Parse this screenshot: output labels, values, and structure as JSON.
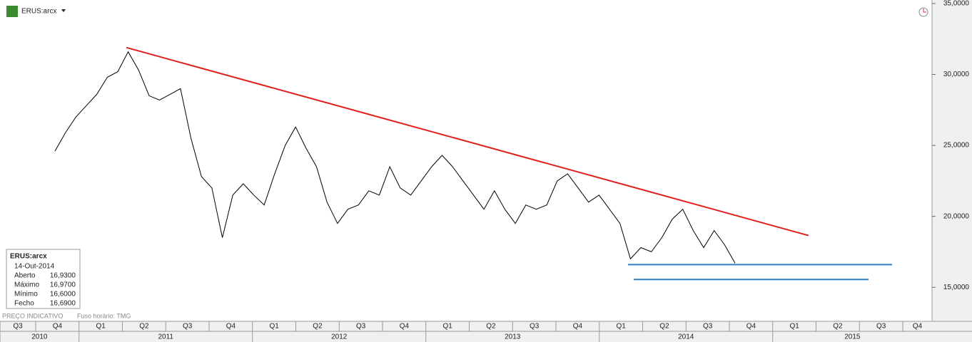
{
  "chart_data": {
    "type": "line",
    "title": "ERUS:arcx",
    "footer": "PREÇO INDICATIVO",
    "timezone": "Fuso horário: TMG",
    "series": [
      {
        "color": "#000000",
        "values": [
          24.6,
          25.9,
          27.0,
          27.8,
          28.6,
          29.8,
          30.2,
          31.6,
          30.3,
          28.5,
          28.2,
          28.6,
          29.0,
          25.5,
          22.8,
          22.0,
          18.5,
          21.5,
          22.3,
          21.5,
          20.8,
          23.0,
          25.0,
          26.3,
          24.8,
          23.5,
          21.0,
          19.5,
          20.5,
          20.8,
          21.8,
          21.5,
          23.5,
          22.0,
          21.5,
          22.5,
          23.5,
          24.3,
          23.5,
          22.5,
          21.5,
          20.5,
          21.8,
          20.5,
          19.5,
          20.8,
          20.5,
          20.8,
          22.5,
          23.0,
          22.0,
          21.0,
          21.5,
          20.5,
          19.5,
          17.0,
          17.8,
          17.5,
          18.5,
          19.8,
          20.5,
          19.0,
          17.8,
          19.0,
          18.0,
          16.7
        ]
      }
    ],
    "trend_line": {
      "color": "#e0201b",
      "values": [
        31.9,
        18.65
      ]
    },
    "support_lines": [
      {
        "color": "#2e7dbf",
        "value": 16.6
      },
      {
        "color": "#2e7dbf",
        "value": 15.55
      }
    ],
    "ylim": [
      12.65,
      35.25
    ],
    "yticks": [
      {
        "value": 15,
        "label": "15,0000"
      },
      {
        "value": 20,
        "label": "20,0000"
      },
      {
        "value": 25,
        "label": "25,0000"
      },
      {
        "value": 30,
        "label": "30,0000"
      },
      {
        "value": 35,
        "label": "35,0000"
      }
    ],
    "quarters": [
      "Q3",
      "Q4",
      "Q1",
      "Q2",
      "Q3",
      "Q4",
      "Q1",
      "Q2",
      "Q3",
      "Q4",
      "Q1",
      "Q2",
      "Q3",
      "Q4",
      "Q1",
      "Q2",
      "Q3",
      "Q4",
      "Q1",
      "Q2",
      "Q3",
      "Q4"
    ],
    "years": [
      "2010",
      "2011",
      "2012",
      "2013",
      "2014",
      "2015"
    ],
    "info_box": {
      "name": "ERUS:arcx",
      "date": "14-Out-2014",
      "rows": [
        [
          "Aberto",
          "16,9300"
        ],
        [
          "Máximo",
          "16,9700"
        ],
        [
          "Mínimo",
          "16,6000"
        ],
        [
          "Fecho",
          "16,6900"
        ]
      ]
    }
  }
}
